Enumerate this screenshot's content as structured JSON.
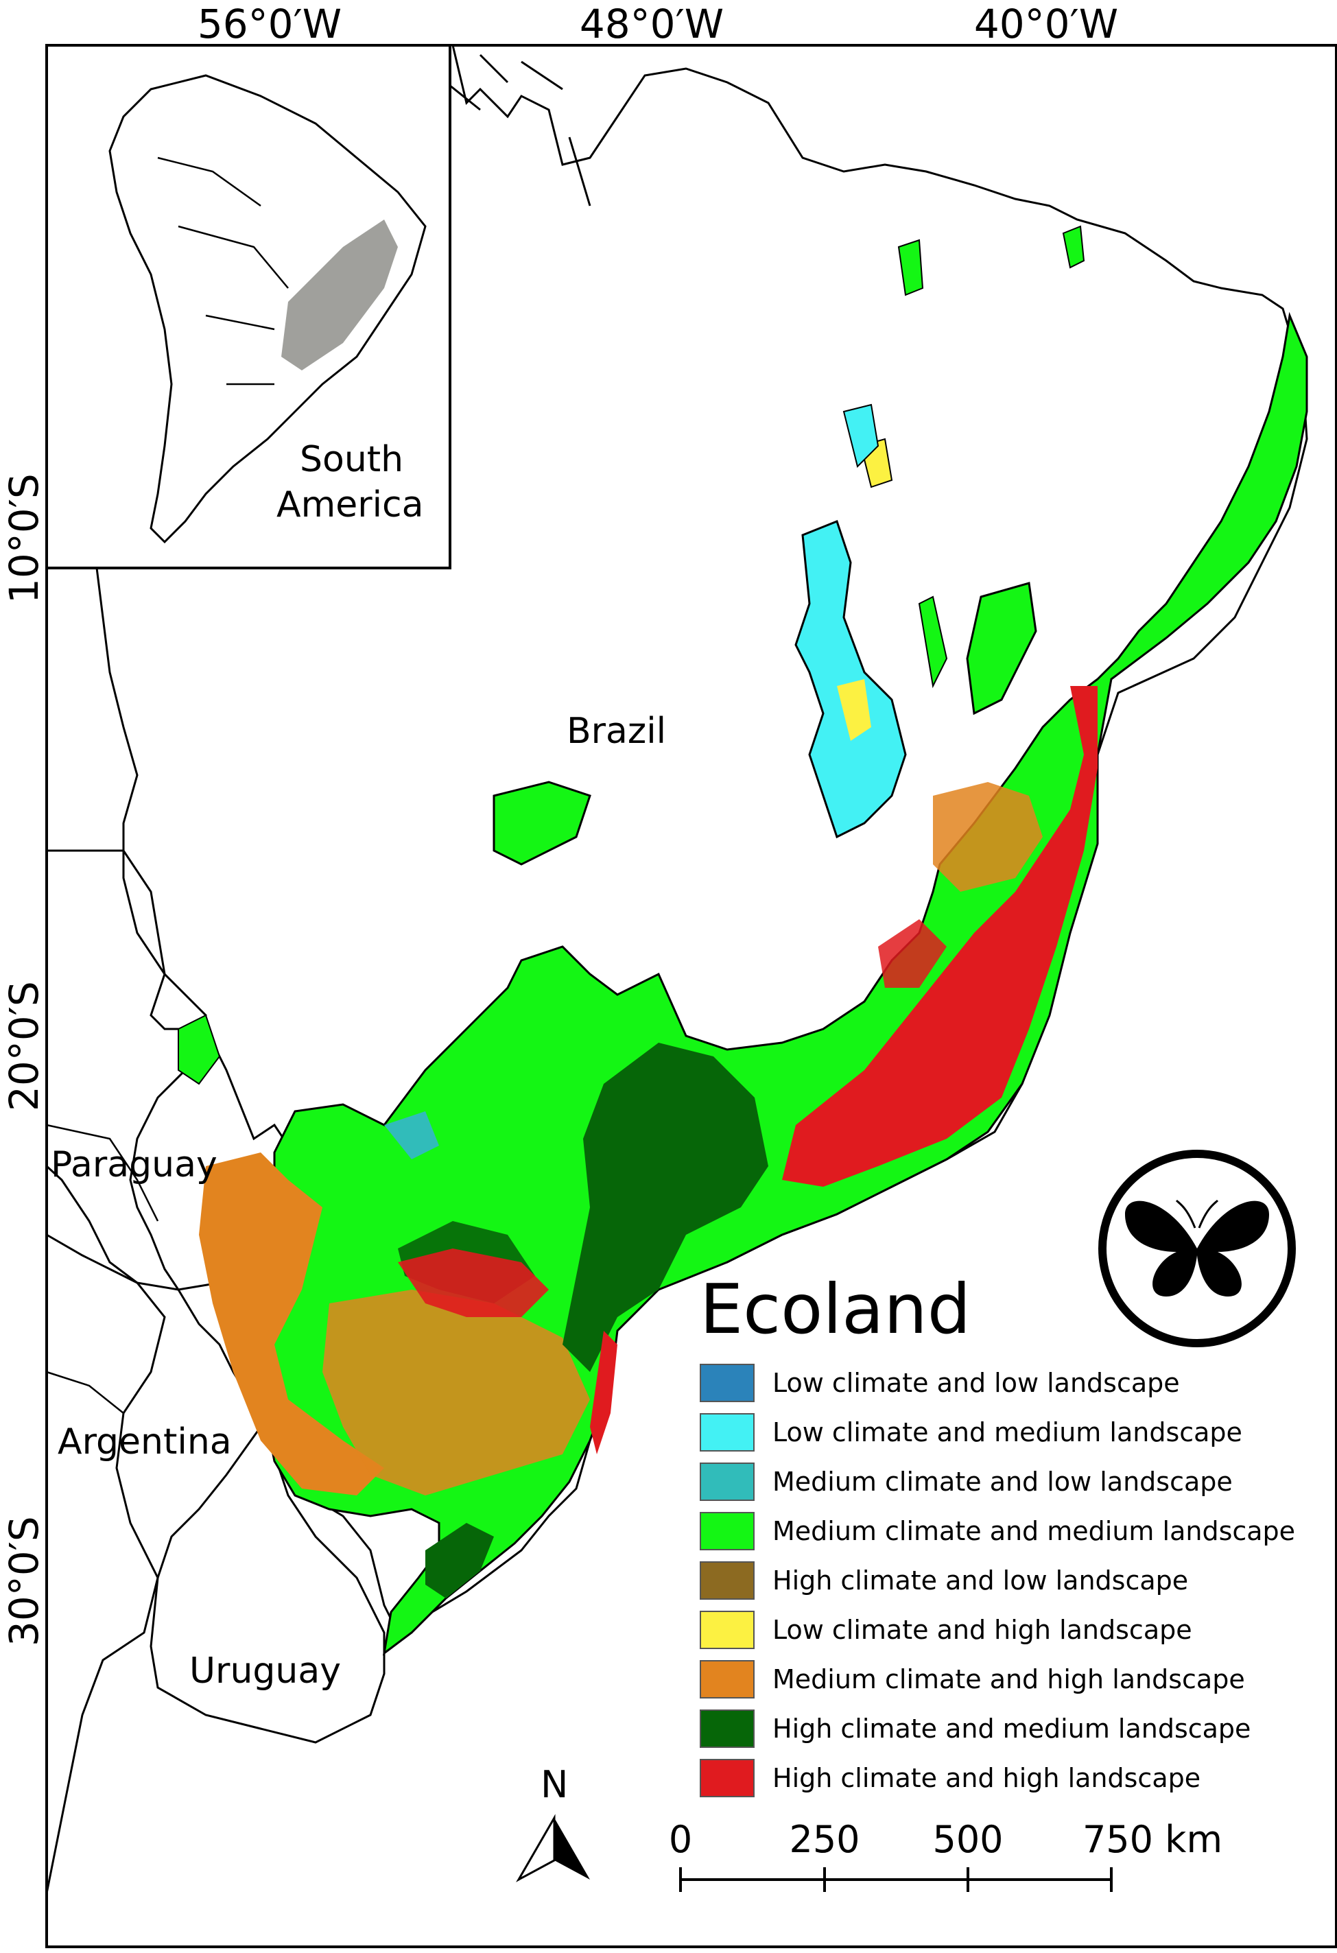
{
  "coordinates": {
    "longitude": [
      "56°0′W",
      "48°0′W",
      "40°0′W"
    ],
    "latitude": [
      "10°0′S",
      "20°0′S",
      "30°0′S"
    ]
  },
  "countries": {
    "brazil": "Brazil",
    "paraguay": "Paraguay",
    "argentina": "Argentina",
    "uruguay": "Uruguay"
  },
  "inset": {
    "line1": "South",
    "line2": "America",
    "highlight_color": "#a0a09c"
  },
  "legend": {
    "title": "Ecoland",
    "items": [
      {
        "label": "Low climate and low landscape",
        "color": "#2b83ba"
      },
      {
        "label": "Low climate and medium landscape",
        "color": "#43f1f4"
      },
      {
        "label": "Medium climate and low landscape",
        "color": "#31bcba"
      },
      {
        "label": "Medium climate and medium landscape",
        "color": "#14f614"
      },
      {
        "label": "High climate and low landscape",
        "color": "#8c6a21"
      },
      {
        "label": "Low climate and high landscape",
        "color": "#fcf142"
      },
      {
        "label": "Medium climate and high landscape",
        "color": "#e2841f"
      },
      {
        "label": "High climate and medium landscape",
        "color": "#066608"
      },
      {
        "label": "High climate and high landscape",
        "color": "#e01b1f"
      }
    ]
  },
  "scale_bar": {
    "ticks": [
      "0",
      "250",
      "500",
      "750 km"
    ]
  },
  "north_arrow": {
    "label": "N"
  },
  "logo": {
    "icon": "butterfly-icon"
  }
}
